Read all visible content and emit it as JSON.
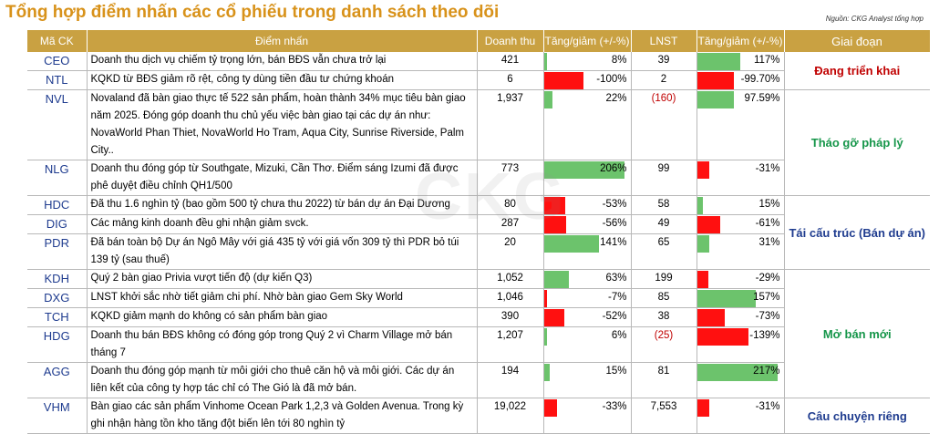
{
  "title": "Tổng hợp điểm nhấn các cổ phiếu trong danh sách theo dõi",
  "source": "Nguồn: CKG Analyst tổng hợp",
  "watermark": "CKG",
  "headers": {
    "ticker": "Mã CK",
    "highlight": "Điểm nhấn",
    "revenue": "Doanh thu",
    "rev_change": "Tăng/giảm (+/-%)",
    "profit": "LNST",
    "profit_change": "Tăng/giảm (+/-%)",
    "stage": "Giai đoạn"
  },
  "colors": {
    "header": "#c9a142",
    "up_bar": "#6cc36c",
    "down_bar": "#ff1010",
    "title": "#d8921a"
  },
  "rows": [
    {
      "ticker": "CEO",
      "note": "Doanh thu dịch vụ chiếm tỷ trọng lớn, bán BĐS vẫn chưa trở lại",
      "revenue": "421",
      "rev_change": "8%",
      "rev_change_value": 8,
      "profit": "39",
      "profit_change": "117%",
      "profit_change_value": 117
    },
    {
      "ticker": "NTL",
      "note": "KQKD từ BĐS giảm rõ rệt, công ty dùng tiền đầu tư chứng khoán",
      "revenue": "6",
      "rev_change": "-100%",
      "rev_change_value": -100,
      "profit": "2",
      "profit_change": "-99.70%",
      "profit_change_value": -99.7
    },
    {
      "ticker": "NVL",
      "note": "Novaland đã bàn giao thực tế 522 sản phẩm, hoàn thành 34% mục tiêu bàn giao năm 2025. Đóng góp doanh thu chủ yếu việc bàn giao tại các dự án như: NovaWorld Phan Thiet, NovaWorld Ho Tram, Aqua City, Sunrise Riverside, Palm City..",
      "revenue": "1,937",
      "rev_change": "22%",
      "rev_change_value": 22,
      "profit": "(160)",
      "profit_change": "97.59%",
      "profit_change_value": 97.59
    },
    {
      "ticker": "NLG",
      "note": "Doanh thu đóng góp từ Southgate, Mizuki, Cần Thơ. Điểm sáng Izumi đã được phê duyệt điều chỉnh QH1/500",
      "revenue": "773",
      "rev_change": "206%",
      "rev_change_value": 206,
      "profit": "99",
      "profit_change": "-31%",
      "profit_change_value": -31
    },
    {
      "ticker": "HDC",
      "note": "Đã thu 1.6 nghìn tỷ (bao gồm 500 tỷ chưa thu 2022) từ bán dự án Đại Dương",
      "revenue": "80",
      "rev_change": "-53%",
      "rev_change_value": -53,
      "profit": "58",
      "profit_change": "15%",
      "profit_change_value": 15
    },
    {
      "ticker": "DIG",
      "note": "Các mảng kinh doanh đều ghi nhận giảm svck.",
      "revenue": "287",
      "rev_change": "-56%",
      "rev_change_value": -56,
      "profit": "49",
      "profit_change": "-61%",
      "profit_change_value": -61
    },
    {
      "ticker": "PDR",
      "note": "Đã bán toàn bộ Dự án Ngô Mây với giá 435 tỷ với giá vốn 309 tỷ thì PDR bỏ túi 139 tỷ (sau thuế)",
      "revenue": "20",
      "rev_change": "141%",
      "rev_change_value": 141,
      "profit": "65",
      "profit_change": "31%",
      "profit_change_value": 31
    },
    {
      "ticker": "KDH",
      "note": "Quý 2 bàn giao Privia vượt tiến độ (dự kiến Q3)",
      "revenue": "1,052",
      "rev_change": "63%",
      "rev_change_value": 63,
      "profit": "199",
      "profit_change": "-29%",
      "profit_change_value": -29
    },
    {
      "ticker": "DXG",
      "note": "LNST khởi sắc nhờ tiết giảm chi phí. Nhờ bàn giao Gem Sky World",
      "revenue": "1,046",
      "rev_change": "-7%",
      "rev_change_value": -7,
      "profit": "85",
      "profit_change": "157%",
      "profit_change_value": 157
    },
    {
      "ticker": "TCH",
      "note": "KQKD giảm mạnh do không có sản phẩm bàn giao",
      "revenue": "390",
      "rev_change": "-52%",
      "rev_change_value": -52,
      "profit": "38",
      "profit_change": "-73%",
      "profit_change_value": -73
    },
    {
      "ticker": "HDG",
      "note": "Doanh thu bán BĐS không có đóng góp trong Quý 2 vì Charm Village mở bán tháng 7",
      "revenue": "1,207",
      "rev_change": "6%",
      "rev_change_value": 6,
      "profit": "(25)",
      "profit_change": "-139%",
      "profit_change_value": -139
    },
    {
      "ticker": "AGG",
      "note": "Doanh thu đóng góp mạnh từ môi giới cho thuê căn hộ và môi giới. Các dự án liên kết của công ty hợp tác chỉ có The Gió là đã mở bán.",
      "revenue": "194",
      "rev_change": "15%",
      "rev_change_value": 15,
      "profit": "81",
      "profit_change": "217%",
      "profit_change_value": 217
    },
    {
      "ticker": "VHM",
      "note": "Bàn giao các sản phẩm Vinhome Ocean Park 1,2,3 và Golden Avenua. Trong kỳ ghi nhận hàng tồn kho tăng đột biến lên tới 80 nghìn tỷ",
      "revenue": "19,022",
      "rev_change": "-33%",
      "rev_change_value": -33,
      "profit": "7,553",
      "profit_change": "-31%",
      "profit_change_value": -31
    }
  ],
  "stages": [
    {
      "label": "Đang triển khai",
      "color": "red"
    },
    {
      "label": "Tháo gỡ pháp lý",
      "color": "green"
    },
    {
      "label": "Tái cấu trúc (Bán dự án)",
      "color": "blue"
    },
    {
      "label": "Mở bán mới",
      "color": "green"
    },
    {
      "label": "Câu chuyện riêng",
      "color": "blue"
    }
  ]
}
